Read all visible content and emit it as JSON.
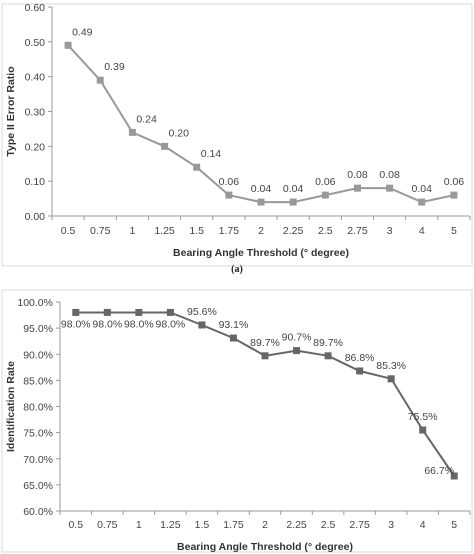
{
  "figure_caption": "(a)",
  "chart_data": [
    {
      "type": "line",
      "categories": [
        "0.5",
        "0.75",
        "1",
        "1.25",
        "1.5",
        "1.75",
        "2",
        "2.25",
        "2.5",
        "2.75",
        "3",
        "4",
        "5"
      ],
      "series": [
        {
          "values": [
            0.49,
            0.39,
            0.24,
            0.2,
            0.14,
            0.06,
            0.04,
            0.04,
            0.06,
            0.08,
            0.08,
            0.04,
            0.06
          ]
        }
      ],
      "data_labels": [
        "0.49",
        "0.39",
        "0.24",
        "0.20",
        "0.14",
        "0.06",
        "0.04",
        "0.04",
        "0.06",
        "0.08",
        "0.08",
        "0.04",
        "0.06"
      ],
      "yticks": [
        "0.00",
        "0.10",
        "0.20",
        "0.30",
        "0.40",
        "0.50",
        "0.60"
      ],
      "ylim": [
        0,
        0.6
      ],
      "xlabel": "Bearing Angle Threshold (° degree)",
      "ylabel": "Type II Error Ratio",
      "title": "",
      "grid": false,
      "color": "#999999"
    },
    {
      "type": "line",
      "categories": [
        "0.5",
        "0.75",
        "1",
        "1.25",
        "1.5",
        "1.75",
        "2",
        "2.25",
        "2.5",
        "2.75",
        "3",
        "4",
        "5"
      ],
      "series": [
        {
          "values": [
            98.0,
            98.0,
            98.0,
            98.0,
            95.6,
            93.1,
            89.7,
            90.7,
            89.7,
            86.8,
            85.3,
            75.5,
            66.7
          ]
        }
      ],
      "data_labels": [
        "98.0%",
        "98.0%",
        "98.0%",
        "98.0%",
        "95.6%",
        "93.1%",
        "89.7%",
        "90.7%",
        "89.7%",
        "86.8%",
        "85.3%",
        "75.5%",
        "66.7%"
      ],
      "yticks": [
        "60.0%",
        "65.0%",
        "70.0%",
        "75.0%",
        "80.0%",
        "85.0%",
        "90.0%",
        "95.0%",
        "100.0%"
      ],
      "ylim": [
        60,
        100
      ],
      "xlabel": "Bearing Angle Threshold (° degree)",
      "ylabel": "Identification Rate",
      "title": "",
      "grid": false,
      "color": "#666666"
    }
  ]
}
